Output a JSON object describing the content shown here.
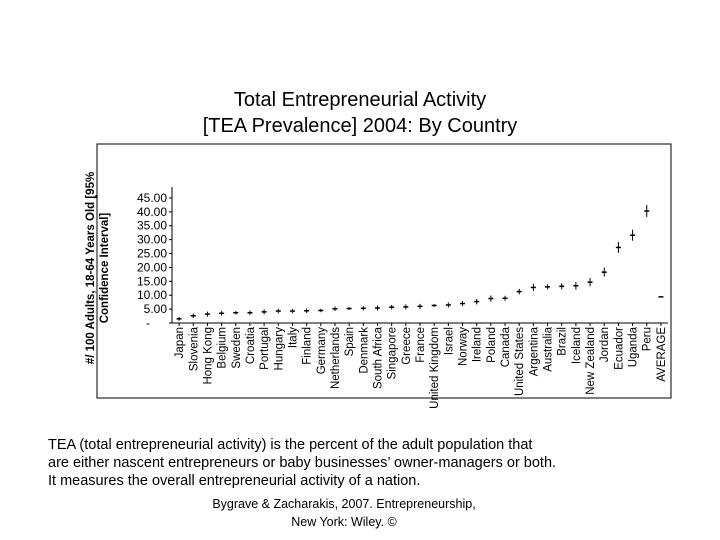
{
  "chart_data": {
    "type": "error_bar",
    "title_lines": [
      "Total Entrepreneurial Activity",
      "[TEA Prevalence] 2004: By Country"
    ],
    "ylabel_lines": [
      "#/ 100 Adults, 18-64 Years Old [95%",
      "Confidence Interval]"
    ],
    "yticks": [
      "45.00",
      "40.00",
      "35.00",
      "30.00",
      "25.00",
      "20.00",
      "15.00",
      "10.00",
      "5.00",
      "-"
    ],
    "ylim": [
      0,
      47.5
    ],
    "categories": [
      "Japan",
      "Slovenia",
      "Hong Kong",
      "Belgium",
      "Sweden",
      "Croatia",
      "Portugal",
      "Hungary",
      "Italy",
      "Finland",
      "Germany",
      "Netherlands",
      "Spain",
      "Denmark",
      "South Africa",
      "Singapore",
      "Greece",
      "France",
      "United Kingdom",
      "Israel",
      "Norway",
      "Ireland",
      "Poland",
      "Canada",
      "United States",
      "Argentina",
      "Australia",
      "Brazil",
      "Iceland",
      "New Zealand",
      "Jordan",
      "Ecuador",
      "Uganda",
      "Peru",
      "AVERAGE"
    ],
    "values": [
      1.5,
      2.6,
      3.2,
      3.5,
      3.7,
      3.7,
      4.0,
      4.3,
      4.3,
      4.4,
      4.5,
      5.1,
      5.2,
      5.3,
      5.4,
      5.7,
      5.8,
      6.0,
      6.3,
      6.5,
      7.0,
      7.7,
      8.8,
      8.9,
      11.3,
      12.8,
      13.0,
      13.2,
      13.4,
      14.7,
      18.3,
      27.2,
      31.6,
      40.3,
      9.4
    ],
    "lower": [
      0.8,
      1.8,
      2.3,
      2.7,
      3.1,
      2.9,
      3.1,
      3.5,
      3.5,
      3.6,
      3.9,
      4.3,
      4.7,
      4.5,
      4.5,
      4.9,
      4.9,
      5.1,
      5.8,
      5.6,
      6.1,
      6.7,
      7.7,
      8.0,
      10.3,
      11.5,
      12.1,
      12.1,
      12.0,
      13.2,
      16.7,
      25.2,
      29.6,
      38.1,
      9.2
    ],
    "upper": [
      2.2,
      3.4,
      4.1,
      4.3,
      4.3,
      4.5,
      4.9,
      5.1,
      5.1,
      5.2,
      5.1,
      5.9,
      5.7,
      6.1,
      6.3,
      6.5,
      6.7,
      6.9,
      6.8,
      7.4,
      7.9,
      8.7,
      9.9,
      9.8,
      12.3,
      14.1,
      13.9,
      14.3,
      14.8,
      16.2,
      19.9,
      29.2,
      33.6,
      42.5,
      9.6
    ],
    "grid": false,
    "legend": "none"
  },
  "note_lines": [
    "TEA (total entrepreneurial activity) is the percent of the adult population that",
    "are either nascent entrepreneurs or baby businesses’ owner-managers or both.",
    "It measures the overall entrepreneurial activity of a nation."
  ],
  "credit_lines": [
    "Bygrave & Zacharakis, 2007.  Entrepreneurship,",
    "New York: Wiley.  ©"
  ]
}
